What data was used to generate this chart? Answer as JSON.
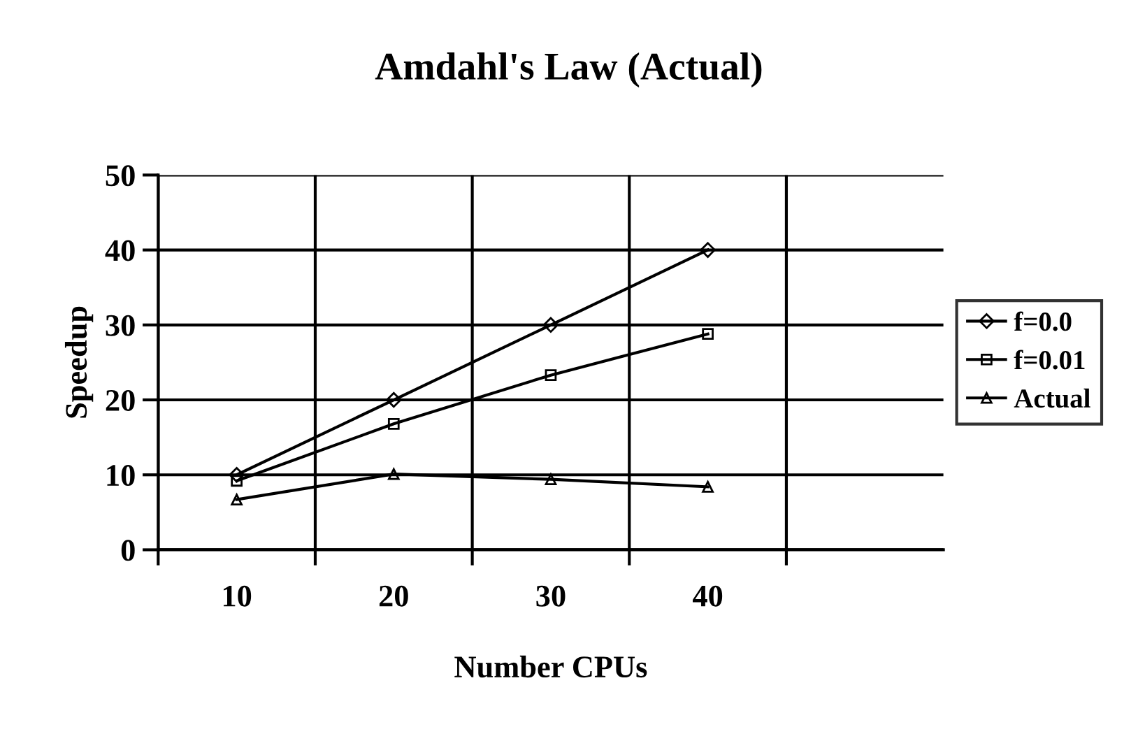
{
  "chart_data": {
    "type": "line",
    "title": "Amdahl's Law (Actual)",
    "xlabel": "Number CPUs",
    "ylabel": "Speedup",
    "categories": [
      "10",
      "20",
      "30",
      "40",
      null
    ],
    "series": [
      {
        "name": "f=0.0",
        "color": "#000000",
        "marker": "diamond",
        "values": [
          10,
          20,
          30,
          40,
          null
        ]
      },
      {
        "name": "f=0.01",
        "color": "#000000",
        "marker": "square",
        "values": [
          9.2,
          16.8,
          23.3,
          28.8,
          null
        ]
      },
      {
        "name": "Actual",
        "color": "#000000",
        "marker": "triangle",
        "values": [
          6.7,
          10.1,
          9.4,
          8.4,
          null
        ]
      }
    ],
    "ylim": [
      0,
      50
    ],
    "yticks": [
      0,
      10,
      20,
      30,
      40,
      50
    ],
    "grid": true,
    "legend": "right",
    "line_style": "solid"
  }
}
